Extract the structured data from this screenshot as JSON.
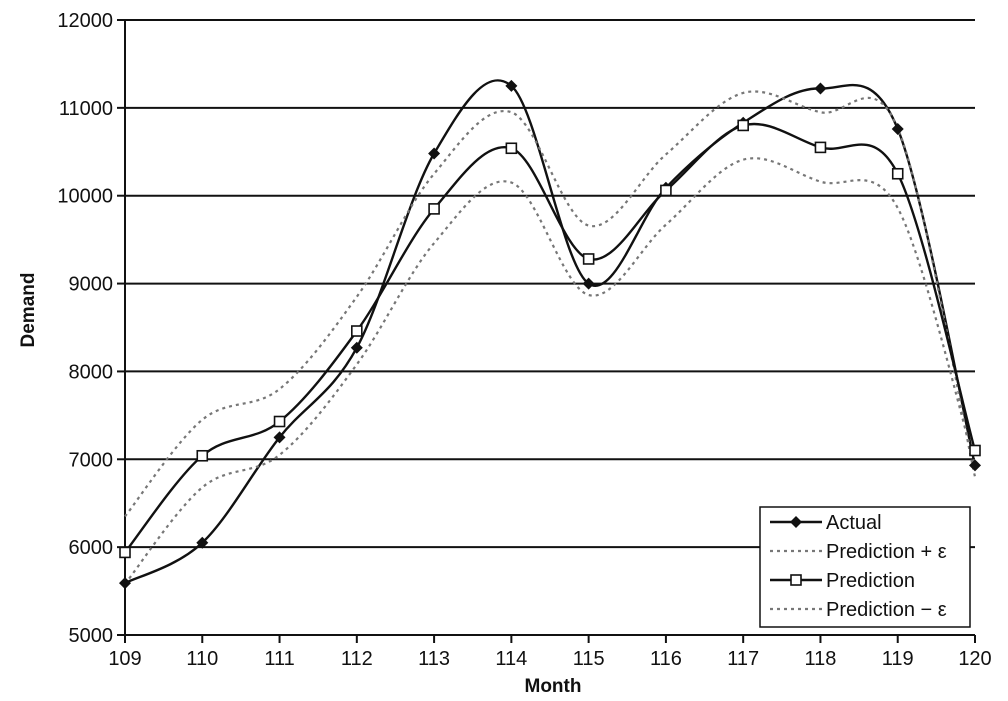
{
  "chart_data": {
    "type": "line",
    "title": "",
    "xlabel": "Month",
    "ylabel": "Demand",
    "x": [
      109,
      110,
      111,
      112,
      113,
      114,
      115,
      116,
      117,
      118,
      119,
      120
    ],
    "xlim": [
      109,
      120
    ],
    "ylim": [
      5000,
      12000
    ],
    "yticks": [
      5000,
      6000,
      7000,
      8000,
      9000,
      10000,
      11000,
      12000
    ],
    "grid": "horizontal",
    "legend_position": "bottom-right",
    "series": [
      {
        "name": "Actual",
        "style": "solid",
        "marker": "diamond",
        "color": "#111111",
        "values": [
          5590,
          6050,
          7250,
          8270,
          10480,
          11250,
          9000,
          10090,
          10830,
          11220,
          10760,
          6930
        ]
      },
      {
        "name": "Prediction + ε",
        "style": "dotted",
        "marker": "none",
        "color": "#777777",
        "values": [
          6350,
          7450,
          7800,
          8850,
          10250,
          10950,
          9660,
          10470,
          11170,
          10950,
          10770,
          6800
        ]
      },
      {
        "name": "Prediction",
        "style": "solid",
        "marker": "square",
        "color": "#111111",
        "values": [
          5940,
          7040,
          7430,
          8460,
          9850,
          10540,
          9280,
          10060,
          10800,
          10550,
          10250,
          7100
        ]
      },
      {
        "name": "Prediction − ε",
        "style": "dotted",
        "marker": "none",
        "color": "#777777",
        "values": [
          5580,
          6680,
          7050,
          8080,
          9460,
          10150,
          8870,
          9670,
          10410,
          10160,
          9860,
          6940
        ]
      }
    ]
  }
}
